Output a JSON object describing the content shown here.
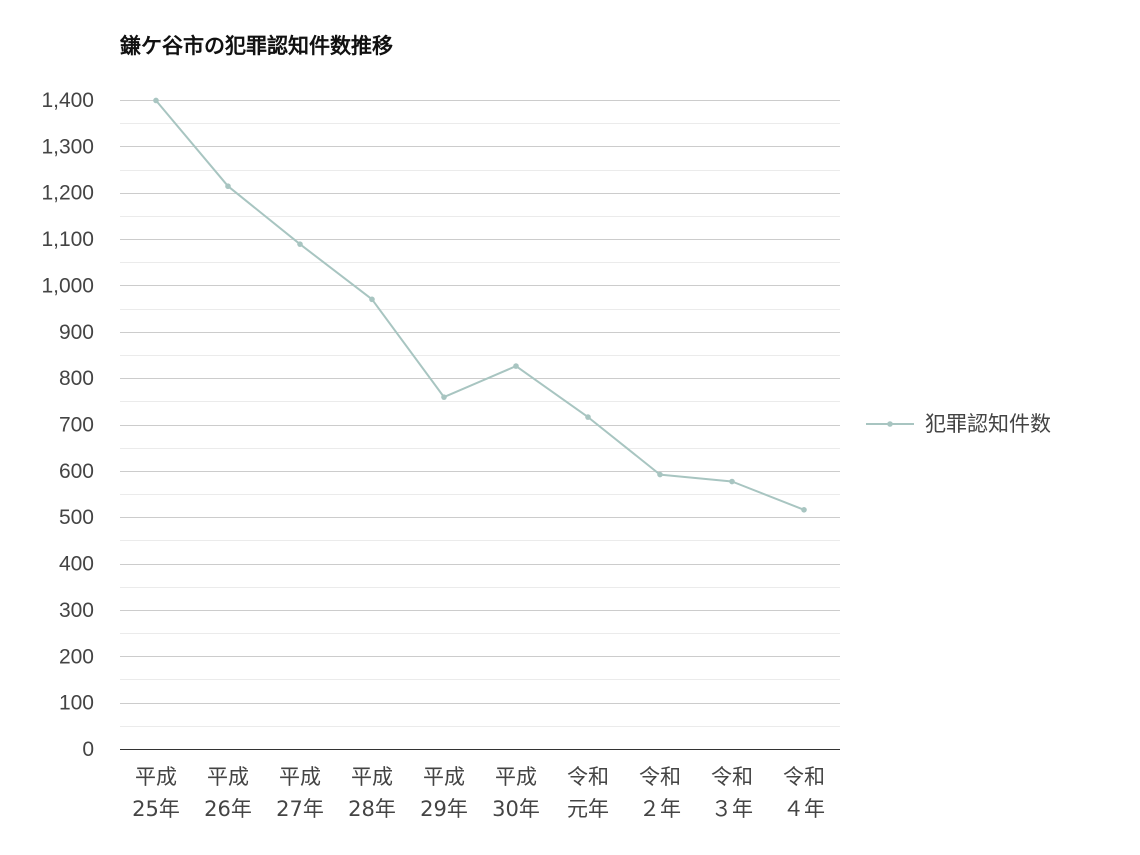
{
  "chart_data": {
    "type": "line",
    "title": "鎌ケ谷市の犯罪認知件数推移",
    "categories": [
      [
        "平成",
        "25年"
      ],
      [
        "平成",
        "26年"
      ],
      [
        "平成",
        "27年"
      ],
      [
        "平成",
        "28年"
      ],
      [
        "平成",
        "29年"
      ],
      [
        "平成",
        "30年"
      ],
      [
        "令和",
        "元年"
      ],
      [
        "令和",
        "２年"
      ],
      [
        "令和",
        "３年"
      ],
      [
        "令和",
        "４年"
      ]
    ],
    "series": [
      {
        "name": "犯罪認知件数",
        "values": [
          1399,
          1214,
          1089,
          970,
          759,
          826,
          716,
          592,
          577,
          516
        ],
        "color": "#a8c5c1"
      }
    ],
    "ylim": [
      0,
      1400
    ],
    "yticks": [
      0,
      100,
      200,
      300,
      400,
      500,
      600,
      700,
      800,
      900,
      1000,
      1100,
      1200,
      1300,
      1400
    ],
    "ytick_labels": [
      "0",
      "100",
      "200",
      "300",
      "400",
      "500",
      "600",
      "700",
      "800",
      "900",
      "1,000",
      "1,100",
      "1,200",
      "1,300",
      "1,400"
    ],
    "grid": true,
    "minor_grid": true,
    "legend_position": "right",
    "colors": {
      "major_grid": "#cccccc",
      "minor_grid": "#ebebeb",
      "axis": "#333333"
    }
  }
}
